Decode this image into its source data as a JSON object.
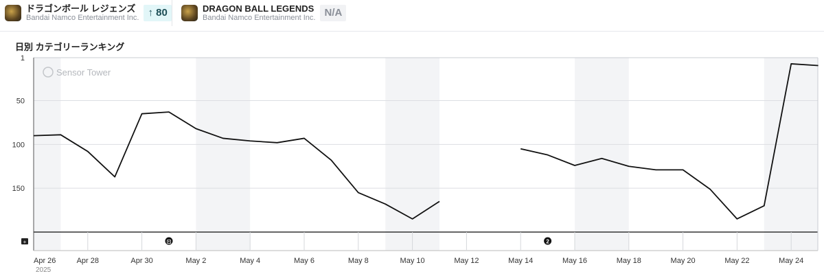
{
  "header": {
    "apps": [
      {
        "name": "ドラゴンボール レジェンズ",
        "publisher": "Bandai Namco Entertainment Inc.",
        "badge": "↑ 80"
      },
      {
        "name": "DRAGON BALL LEGENDS",
        "publisher": "Bandai Namco Entertainment Inc.",
        "badge": "N/A"
      }
    ]
  },
  "watermark": "Sensor Tower",
  "chart_data": {
    "type": "line",
    "title": "日別 カテゴリーランキング",
    "y_ticks": [
      "1",
      "50",
      "100",
      "150"
    ],
    "ylim": [
      1,
      200
    ],
    "y_inverted": true,
    "x_labels": [
      "Apr 26",
      "Apr 28",
      "Apr 30",
      "May 2",
      "May 4",
      "May 6",
      "May 8",
      "May 10",
      "May 12",
      "May 14",
      "May 16",
      "May 18",
      "May 20",
      "May 22",
      "May 24"
    ],
    "x_year": "2025",
    "x_label_days": [
      0,
      2,
      4,
      6,
      8,
      10,
      12,
      14,
      16,
      18,
      20,
      22,
      24,
      26,
      28
    ],
    "series": [
      {
        "name": "ドラゴンボール レジェンズ",
        "color": "#111111",
        "days": [
          0,
          1,
          2,
          3,
          4,
          5,
          6,
          7,
          8,
          9,
          10,
          11,
          12,
          13,
          14,
          15,
          18,
          19,
          20,
          21,
          22,
          23,
          24,
          25,
          26,
          27,
          28,
          29
        ],
        "values": [
          90,
          89,
          108,
          137,
          65,
          63,
          82,
          93,
          96,
          98,
          93,
          118,
          155,
          168,
          185,
          165,
          105,
          112,
          124,
          116,
          125,
          129,
          129,
          151,
          185,
          170,
          8,
          10
        ]
      }
    ],
    "shaded_day_ranges": [
      [
        0,
        1
      ],
      [
        6,
        8
      ],
      [
        13,
        15
      ],
      [
        20,
        22
      ],
      [
        27,
        29
      ]
    ],
    "events": [
      {
        "day": 5,
        "marker": "⊡"
      },
      {
        "day": 19,
        "marker": "2"
      }
    ]
  }
}
